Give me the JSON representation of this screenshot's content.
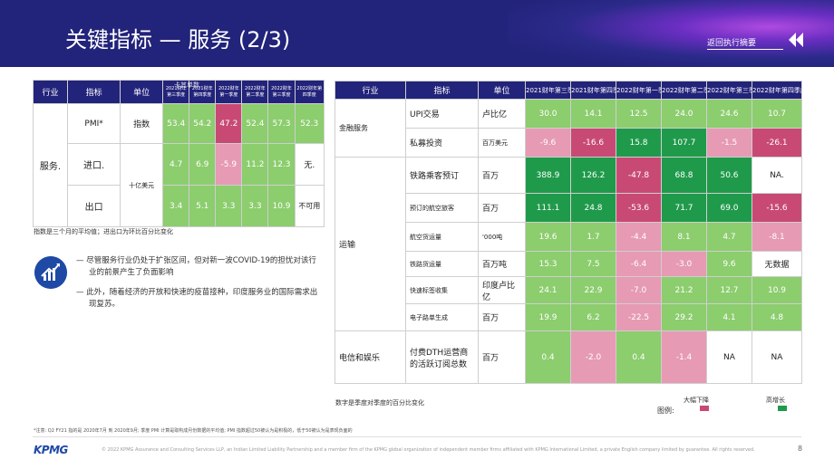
{
  "header": {
    "title": "关键指标 — 服务 (2/3)",
    "back_link": "返回执行摘要",
    "accent": "#22237a"
  },
  "left_table": {
    "headers": [
      "行业",
      "指标",
      "单位",
      "2021财年第三季度",
      "2021财年第四季度",
      "2022财年第一季度",
      "2022财年第二季度",
      "2022财年第三季度",
      "2022财年第四季度"
    ],
    "overlay_text": "卡其单数",
    "sector": "服务.",
    "rows": [
      {
        "indicator": "PMI*",
        "unit": "指数",
        "values": [
          "53.4",
          "54.2",
          "47.2",
          "52.4",
          "57.3",
          "52.3"
        ]
      },
      {
        "indicator": "进口.",
        "unit": "十亿美元",
        "values": [
          "4.7",
          "6.9",
          "-5.9",
          "11.2",
          "12.3",
          "无."
        ]
      },
      {
        "indicator": "出口",
        "unit": "",
        "values": [
          "3.4",
          "5.1",
          "3.3",
          "3.3",
          "10.9",
          "不可用"
        ]
      }
    ],
    "footnote": "指数是三个月的平均值；进出口为环比百分比变化"
  },
  "insights": {
    "icon": "trend-chart-icon",
    "bullets": [
      "— 尽管服务行业仍处于扩张区间，但对新一波COVID-19的担忧对该行业的前景产生了负面影响",
      "— 此外，随着经济的开放和快速的疫苗接种，印度服务业的国际需求出现复苏。"
    ]
  },
  "right_table": {
    "headers": [
      "行业",
      "指标",
      "单位",
      "2021财年第三季度",
      "2021财年第四季度",
      "2022财年第一季度",
      "2022财年第二季度",
      "2022财年第三季度",
      "2022财年第四季度"
    ],
    "sectors": [
      {
        "name": "金融服务",
        "rows": [
          {
            "indicator": "UPI交易",
            "unit": "卢比亿",
            "values": [
              "30.0",
              "14.1",
              "12.5",
              "24.0",
              "24.6",
              "10.7"
            ]
          },
          {
            "indicator": "私募投资",
            "unit": "百万美元",
            "values": [
              "-9.6",
              "-16.6",
              "15.8",
              "107.7",
              "-1.5",
              "-26.1"
            ]
          }
        ]
      },
      {
        "name": "运输",
        "rows": [
          {
            "indicator": "铁路乘客预订",
            "unit": "百万",
            "values": [
              "388.9",
              "126.2",
              "-47.8",
              "68.8",
              "50.6",
              "NA."
            ]
          },
          {
            "indicator": "预订的航空旅客",
            "unit": "百万",
            "values": [
              "111.1",
              "24.8",
              "-53.6",
              "71.7",
              "69.0",
              "-15.6"
            ]
          },
          {
            "indicator": "航空货运量",
            "unit": "'000吨",
            "values": [
              "19.6",
              "1.7",
              "-4.4",
              "8.1",
              "4.7",
              "-8.1"
            ]
          },
          {
            "indicator": "铁路货运量",
            "unit": "百万吨",
            "values": [
              "15.3",
              "7.5",
              "-6.4",
              "-3.0",
              "9.6",
              "无数据"
            ]
          },
          {
            "indicator": "快速标签收集",
            "unit": "印度卢比亿",
            "values": [
              "24.1",
              "22.9",
              "-7.0",
              "21.2",
              "12.7",
              "10.9"
            ]
          },
          {
            "indicator": "电子路单生成",
            "unit": "百万",
            "values": [
              "19.9",
              "6.2",
              "-22.5",
              "29.2",
              "4.1",
              "4.8"
            ]
          }
        ]
      },
      {
        "name": "电信和娱乐",
        "rows": [
          {
            "indicator": "付费DTH运营商的活跃订阅总数",
            "unit": "百万",
            "values": [
              "0.4",
              "-2.0",
              "0.4",
              "-1.4",
              "NA",
              "NA"
            ]
          }
        ]
      }
    ],
    "footnote": "数字是季度对季度的百分比变化"
  },
  "legend": {
    "label": "图例:",
    "decline": "大幅下降",
    "growth": "高增长",
    "decline_color": "#c84a74",
    "growth_color": "#1f9a4b"
  },
  "footer": {
    "note": "*注意: Q2 FY21 指的是 2020年7月 到 2020年9月; 季度 PMI 计算是取构成月份数据的平均值; PMI 指数超过50被认为是积极的，低于50被认为是表现负面的",
    "logo": "KPMG",
    "copyright": "© 2022 KPMG Assurance and Consulting Services LLP, an Indian Limited Liability Partnership and a member firm of the KPMG global organization of independent member firms affiliated with KPMG International Limited, a private English company limited by guarantee. All rights reserved.",
    "page": "8"
  }
}
